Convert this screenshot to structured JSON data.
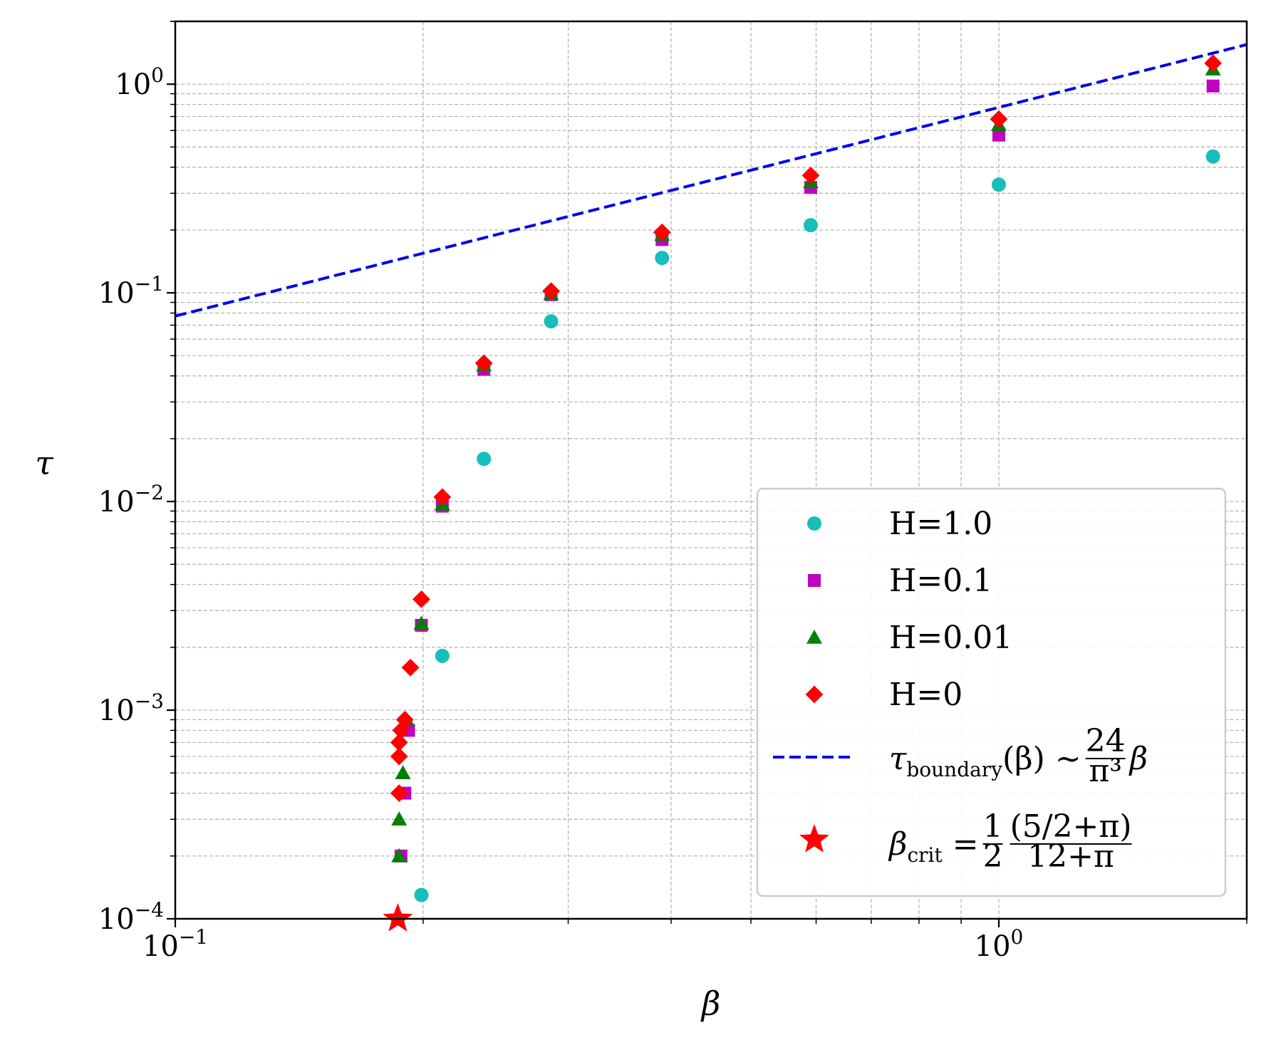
{
  "chart_data": {
    "type": "scatter",
    "title": "",
    "xlabel": "β",
    "ylabel": "τ",
    "xscale": "log",
    "yscale": "log",
    "xlim": [
      0.1,
      2.0
    ],
    "ylim": [
      0.0001,
      2.0
    ],
    "x_tick_labels": [
      {
        "value": 0.1,
        "base": "10",
        "exp": "−1"
      },
      {
        "value": 1.0,
        "base": "10",
        "exp": "0"
      }
    ],
    "y_tick_labels": [
      {
        "value": 0.0001,
        "base": "10",
        "exp": "−4"
      },
      {
        "value": 0.001,
        "base": "10",
        "exp": "−3"
      },
      {
        "value": 0.01,
        "base": "10",
        "exp": "−2"
      },
      {
        "value": 0.1,
        "base": "10",
        "exp": "−1"
      },
      {
        "value": 1.0,
        "base": "10",
        "exp": "0"
      }
    ],
    "grid": true,
    "legend_position": "bottom-right",
    "series": [
      {
        "name": "H=1.0",
        "marker": "circle",
        "color": "#17bebb",
        "points": [
          [
            0.199,
            0.00013
          ],
          [
            0.211,
            0.00182
          ],
          [
            0.237,
            0.016
          ],
          [
            0.286,
            0.073
          ],
          [
            0.39,
            0.147
          ],
          [
            0.591,
            0.211
          ],
          [
            1.0,
            0.33
          ],
          [
            1.82,
            0.45
          ]
        ]
      },
      {
        "name": "H=0.1",
        "marker": "square",
        "color": "#c000c0",
        "points": [
          [
            0.188,
            0.0002
          ],
          [
            0.19,
            0.0004
          ],
          [
            0.192,
            0.0008
          ],
          [
            0.199,
            0.00255
          ],
          [
            0.211,
            0.0095
          ],
          [
            0.237,
            0.043
          ],
          [
            0.286,
            0.098
          ],
          [
            0.39,
            0.18
          ],
          [
            0.591,
            0.32
          ],
          [
            1.0,
            0.57
          ],
          [
            1.82,
            0.98
          ]
        ]
      },
      {
        "name": "H=0.01",
        "marker": "triangle",
        "color": "#008000",
        "points": [
          [
            0.187,
            0.0002
          ],
          [
            0.187,
            0.0003
          ],
          [
            0.189,
            0.0005
          ],
          [
            0.191,
            0.0009
          ],
          [
            0.199,
            0.0026
          ],
          [
            0.211,
            0.0097
          ],
          [
            0.237,
            0.045
          ],
          [
            0.286,
            0.099
          ],
          [
            0.39,
            0.19
          ],
          [
            0.591,
            0.34
          ],
          [
            1.0,
            0.64
          ],
          [
            1.82,
            1.18
          ]
        ]
      },
      {
        "name": "H=0",
        "marker": "diamond",
        "color": "#ff0000",
        "points": [
          [
            0.187,
            0.0004
          ],
          [
            0.187,
            0.0006
          ],
          [
            0.187,
            0.0007
          ],
          [
            0.188,
            0.0008
          ],
          [
            0.19,
            0.0009
          ],
          [
            0.193,
            0.0016
          ],
          [
            0.199,
            0.0034
          ],
          [
            0.211,
            0.0105
          ],
          [
            0.237,
            0.046
          ],
          [
            0.286,
            0.102
          ],
          [
            0.39,
            0.195
          ],
          [
            0.591,
            0.365
          ],
          [
            1.0,
            0.68
          ],
          [
            1.82,
            1.26
          ]
        ]
      },
      {
        "name": "τboundary(β) ~ 24/π³ β",
        "type": "line",
        "style": "dashed",
        "color": "#0000ee",
        "slope": 0.774
      },
      {
        "name": "βcrit = ½ (5/2+π)/(12+π)",
        "marker": "star",
        "color": "#ff0000",
        "points": [
          [
            0.1863,
            0.0001
          ]
        ]
      }
    ],
    "legend": [
      {
        "label": "H=1.0",
        "marker": "circle",
        "color": "#17bebb"
      },
      {
        "label": "H=0.1",
        "marker": "square",
        "color": "#c000c0"
      },
      {
        "label": "H=0.01",
        "marker": "triangle",
        "color": "#008000"
      },
      {
        "label": "H=0",
        "marker": "diamond",
        "color": "#ff0000"
      },
      {
        "label_main": "τ",
        "label_sub": "boundary",
        "label_rest": "(β) ∼ ",
        "frac_num": "24",
        "frac_den": "π³",
        "label_tail": "β",
        "marker": "dashed-line",
        "color": "#0000ee"
      },
      {
        "label_main": "β",
        "label_sub": "crit",
        "label_rest": " = ",
        "frac_num": "1",
        "frac_den": "2",
        "frac2_num": "(5/2+π)",
        "frac2_den": "12+π",
        "marker": "star",
        "color": "#ff0000"
      }
    ]
  }
}
